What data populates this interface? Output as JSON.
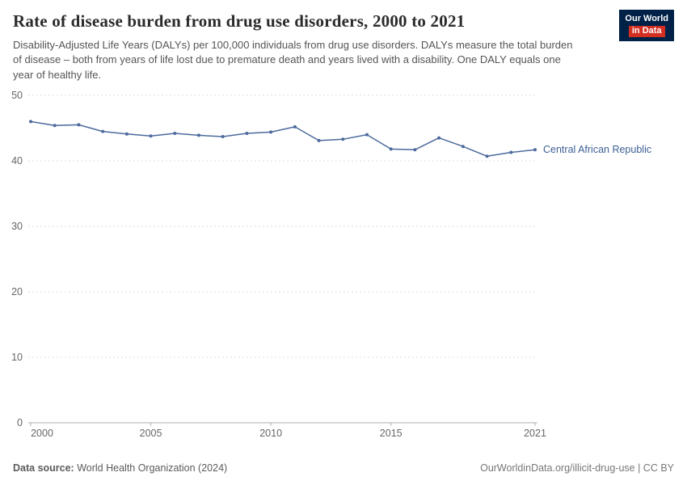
{
  "header": {
    "title": "Rate of disease burden from drug use disorders, 2000 to 2021",
    "subtitle": "Disability-Adjusted Life Years (DALYs) per 100,000 individuals from drug use disorders. DALYs measure the total burden of disease – both from years of life lost due to premature death and years lived with a disability. One DALY equals one year of healthy life.",
    "logo": {
      "line1": "Our World",
      "line2": "in Data"
    }
  },
  "chart_data": {
    "type": "line",
    "title": "Rate of disease burden from drug use disorders, 2000 to 2021",
    "x": [
      2000,
      2001,
      2002,
      2003,
      2004,
      2005,
      2006,
      2007,
      2008,
      2009,
      2010,
      2011,
      2012,
      2013,
      2014,
      2015,
      2016,
      2017,
      2018,
      2019,
      2020,
      2021
    ],
    "series": [
      {
        "name": "Central African Republic",
        "values": [
          46.0,
          45.4,
          45.5,
          44.5,
          44.1,
          43.8,
          44.2,
          43.9,
          43.7,
          44.2,
          44.4,
          45.2,
          43.1,
          43.3,
          44.0,
          41.8,
          41.7,
          43.5,
          42.2,
          40.7,
          41.3,
          41.7
        ]
      }
    ],
    "entity_label": "Central African Republic",
    "ylim": [
      0,
      50
    ],
    "yticks": [
      0,
      10,
      20,
      30,
      40,
      50
    ],
    "xticks": [
      2000,
      2005,
      2010,
      2015,
      2021
    ],
    "grid": "dashed-horizontal",
    "legend_position": "right-of-line",
    "colors": {
      "line": "#4c6a9c",
      "gridline": "#dddddd",
      "axis": "#b0b0b0",
      "tick_text": "#666666",
      "entity_label": "#3d5f94"
    }
  },
  "footer": {
    "datasource_label": "Data source:",
    "datasource_text": "World Health Organization (2024)",
    "right_text": "OurWorldinData.org/illicit-drug-use | CC BY"
  }
}
